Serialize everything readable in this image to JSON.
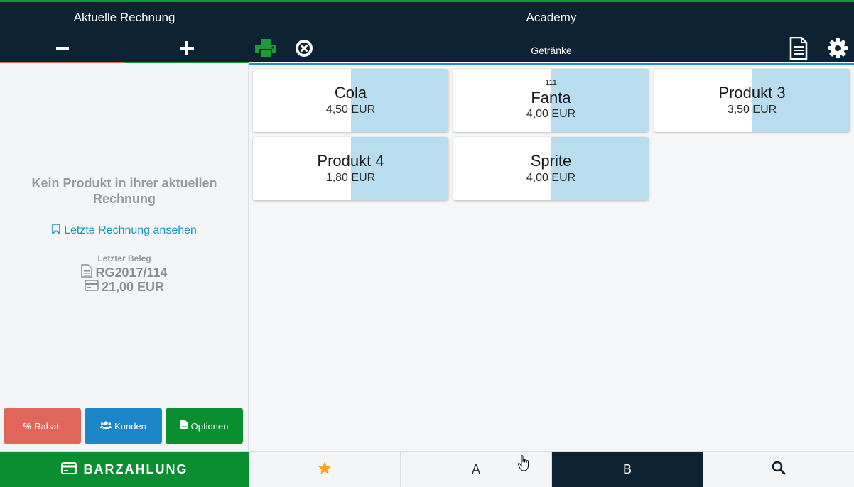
{
  "header": {
    "left_title": "Aktuelle Rechnung",
    "app_title": "Academy",
    "category": "Getränke"
  },
  "left_panel": {
    "empty_message": "Kein Produkt in ihrer aktuellen Rechnung",
    "last_invoice_link": "Letzte Rechnung ansehen",
    "last_receipt_label": "Letzter Beleg",
    "last_receipt_number": "RG2017/114",
    "last_receipt_amount": "21,00 EUR"
  },
  "actions": {
    "discount": "Rabatt",
    "customers": "Kunden",
    "options": "Optionen"
  },
  "products": [
    {
      "name": "Cola",
      "price": "4,50 EUR",
      "number": ""
    },
    {
      "name": "Fanta",
      "price": "4,00 EUR",
      "number": "111"
    },
    {
      "name": "Produkt 3",
      "price": "3,50 EUR",
      "number": ""
    },
    {
      "name": "Produkt 4",
      "price": "1,80 EUR",
      "number": ""
    },
    {
      "name": "Sprite",
      "price": "4,00 EUR",
      "number": ""
    }
  ],
  "bottom": {
    "pay_label": "BARZAHLUNG",
    "tab_a": "A",
    "tab_b": "B",
    "active_tab": "B"
  },
  "colors": {
    "navy": "#0d2233",
    "green": "#0a8f30",
    "red": "#e0665c",
    "blue": "#1b86c8",
    "tile_tint": "#b7ddee",
    "star": "#f5a623"
  }
}
